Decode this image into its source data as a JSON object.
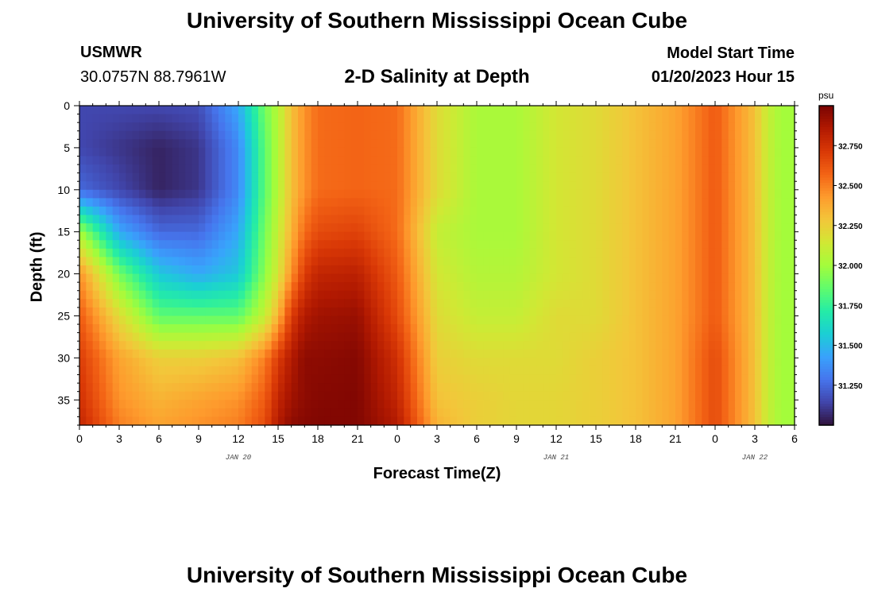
{
  "header": {
    "title": "University of Southern Mississippi Ocean Cube",
    "station_id": "USMWR",
    "coordinates": "30.0757N  88.7961W",
    "subtitle": "2-D Salinity at Depth",
    "start_label": "Model Start Time",
    "start_value": "01/20/2023 Hour 15"
  },
  "footer": {
    "title": "University of Southern Mississippi Ocean Cube"
  },
  "chart_data": {
    "type": "heatmap",
    "title": "2-D Salinity at Depth",
    "xlabel": "Forecast Time(Z)",
    "ylabel": "Depth (ft)",
    "xlim": [
      0,
      54
    ],
    "ylim": [
      38,
      0
    ],
    "x_ticks": [
      0,
      3,
      6,
      9,
      12,
      15,
      18,
      21,
      24,
      27,
      30,
      33,
      36,
      39,
      42,
      45,
      48,
      51,
      54
    ],
    "x_tick_labels": [
      "0",
      "3",
      "6",
      "9",
      "12",
      "15",
      "18",
      "21",
      "0",
      "3",
      "6",
      "9",
      "12",
      "15",
      "18",
      "21",
      "0",
      "3",
      "6"
    ],
    "y_ticks": [
      0,
      5,
      10,
      15,
      20,
      25,
      30,
      35
    ],
    "y_tick_labels": [
      "0",
      "5",
      "10",
      "15",
      "20",
      "25",
      "30",
      "35"
    ],
    "day_labels": [
      {
        "x": 12,
        "text": "JAN 20"
      },
      {
        "x": 36,
        "text": "JAN 21"
      },
      {
        "x": 51,
        "text": "JAN 22"
      }
    ],
    "colorbar": {
      "unit": "psu",
      "range": [
        31.0,
        33.0
      ],
      "tick_values": [
        31.25,
        31.5,
        31.75,
        32.0,
        32.25,
        32.5,
        32.75
      ],
      "tick_labels": [
        "31.250",
        "31.500",
        "31.750",
        "32.000",
        "32.250",
        "32.500",
        "32.750"
      ]
    },
    "x_hours": [
      0,
      3,
      6,
      9,
      12,
      14,
      15,
      16,
      17,
      18,
      21,
      24,
      27,
      30,
      33,
      36,
      39,
      42,
      45,
      48,
      51,
      52,
      53,
      54
    ],
    "depths_ft": [
      0,
      5,
      10,
      15,
      20,
      25,
      30,
      35,
      38
    ],
    "values": [
      [
        31.15,
        31.15,
        31.15,
        31.17,
        31.45,
        31.9,
        32.05,
        32.3,
        32.45,
        32.55,
        32.57,
        32.55,
        32.2,
        32.02,
        32.02,
        32.15,
        32.2,
        32.3,
        32.4,
        32.6,
        32.3,
        32.1,
        32.0,
        32.0
      ],
      [
        31.15,
        31.1,
        31.05,
        31.1,
        31.35,
        31.85,
        32.05,
        32.3,
        32.45,
        32.55,
        32.57,
        32.55,
        32.2,
        32.02,
        32.02,
        32.15,
        32.2,
        32.3,
        32.4,
        32.6,
        32.3,
        32.1,
        32.0,
        32.0
      ],
      [
        31.25,
        31.15,
        31.05,
        31.1,
        31.35,
        31.85,
        32.05,
        32.3,
        32.45,
        32.55,
        32.57,
        32.55,
        32.2,
        32.02,
        32.02,
        32.15,
        32.2,
        32.3,
        32.4,
        32.6,
        32.3,
        32.1,
        32.0,
        32.0
      ],
      [
        32.0,
        31.45,
        31.25,
        31.25,
        31.45,
        31.9,
        32.1,
        32.35,
        32.55,
        32.65,
        32.68,
        32.55,
        32.1,
        32.02,
        32.02,
        32.15,
        32.2,
        32.3,
        32.4,
        32.6,
        32.3,
        32.1,
        32.0,
        32.0
      ],
      [
        32.45,
        31.9,
        31.55,
        31.45,
        31.55,
        31.95,
        32.15,
        32.45,
        32.7,
        32.8,
        32.82,
        32.6,
        32.15,
        32.05,
        32.05,
        32.15,
        32.2,
        32.3,
        32.4,
        32.6,
        32.3,
        32.1,
        32.0,
        32.0
      ],
      [
        32.6,
        32.2,
        31.85,
        31.85,
        31.85,
        32.1,
        32.35,
        32.7,
        32.85,
        32.9,
        32.92,
        32.65,
        32.2,
        32.1,
        32.1,
        32.2,
        32.2,
        32.3,
        32.4,
        32.6,
        32.3,
        32.1,
        32.0,
        32.0
      ],
      [
        32.7,
        32.4,
        32.25,
        32.25,
        32.3,
        32.5,
        32.7,
        32.85,
        32.95,
        32.95,
        32.97,
        32.75,
        32.25,
        32.2,
        32.2,
        32.2,
        32.25,
        32.3,
        32.4,
        32.65,
        32.3,
        32.1,
        32.0,
        32.0
      ],
      [
        32.75,
        32.45,
        32.35,
        32.4,
        32.45,
        32.6,
        32.8,
        32.9,
        32.95,
        32.97,
        32.98,
        32.8,
        32.3,
        32.25,
        32.22,
        32.22,
        32.25,
        32.3,
        32.4,
        32.65,
        32.3,
        32.1,
        32.0,
        32.0
      ],
      [
        32.8,
        32.5,
        32.4,
        32.45,
        32.5,
        32.65,
        32.85,
        32.95,
        32.97,
        32.98,
        32.98,
        32.85,
        32.35,
        32.25,
        32.22,
        32.22,
        32.25,
        32.3,
        32.4,
        32.65,
        32.3,
        32.1,
        32.0,
        32.0
      ]
    ]
  },
  "colors": {
    "colormap": [
      "#30123b",
      "#4145ab",
      "#4675ed",
      "#39a2fc",
      "#1bcfd4",
      "#24eca6",
      "#61fc6c",
      "#a4fc3b",
      "#d1e834",
      "#f3c63a",
      "#fe9b2d",
      "#f36315",
      "#d93806",
      "#b11901",
      "#7a0402"
    ]
  }
}
